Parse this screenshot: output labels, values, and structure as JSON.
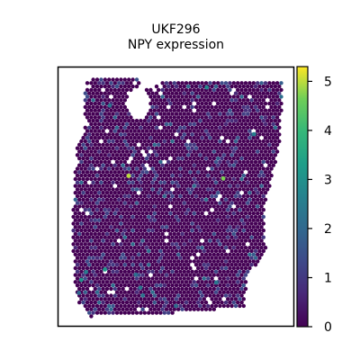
{
  "chart_data": {
    "type": "scatter",
    "title_line1": "UKF296",
    "title_line2": "NPY expression",
    "xlabel": "",
    "ylabel": "",
    "colormap": "viridis",
    "color_range": [
      0,
      5.3
    ],
    "colorbar": {
      "ticks": [
        0,
        1,
        2,
        3,
        4,
        5
      ],
      "tick_labels": [
        "0",
        "1",
        "2",
        "3",
        "4",
        "5"
      ],
      "placement": "right"
    },
    "axes_ticks": "none",
    "highlight_spots": [
      {
        "x": 0.3,
        "y": 0.42,
        "value": 5.0
      },
      {
        "x": 0.7,
        "y": 0.43,
        "value": 4.7
      },
      {
        "x": 0.2,
        "y": 0.78,
        "value": 3.2
      },
      {
        "x": 0.12,
        "y": 0.79,
        "value": 2.5
      },
      {
        "x": 0.1,
        "y": 0.82,
        "value": 3.0
      },
      {
        "x": 0.35,
        "y": 0.85,
        "value": 2.4
      },
      {
        "x": 0.67,
        "y": 0.83,
        "value": 2.4
      },
      {
        "x": 0.63,
        "y": 0.08,
        "value": 2.8
      },
      {
        "x": 0.83,
        "y": 0.26,
        "value": 2.6
      },
      {
        "x": 0.22,
        "y": 0.15,
        "value": 2.3
      },
      {
        "x": 0.33,
        "y": 0.8,
        "value": 2.2
      },
      {
        "x": 0.5,
        "y": 0.92,
        "value": 2.1
      },
      {
        "x": 0.36,
        "y": 0.88,
        "value": 2.3
      },
      {
        "x": 0.09,
        "y": 0.87,
        "value": 2.0
      }
    ]
  }
}
